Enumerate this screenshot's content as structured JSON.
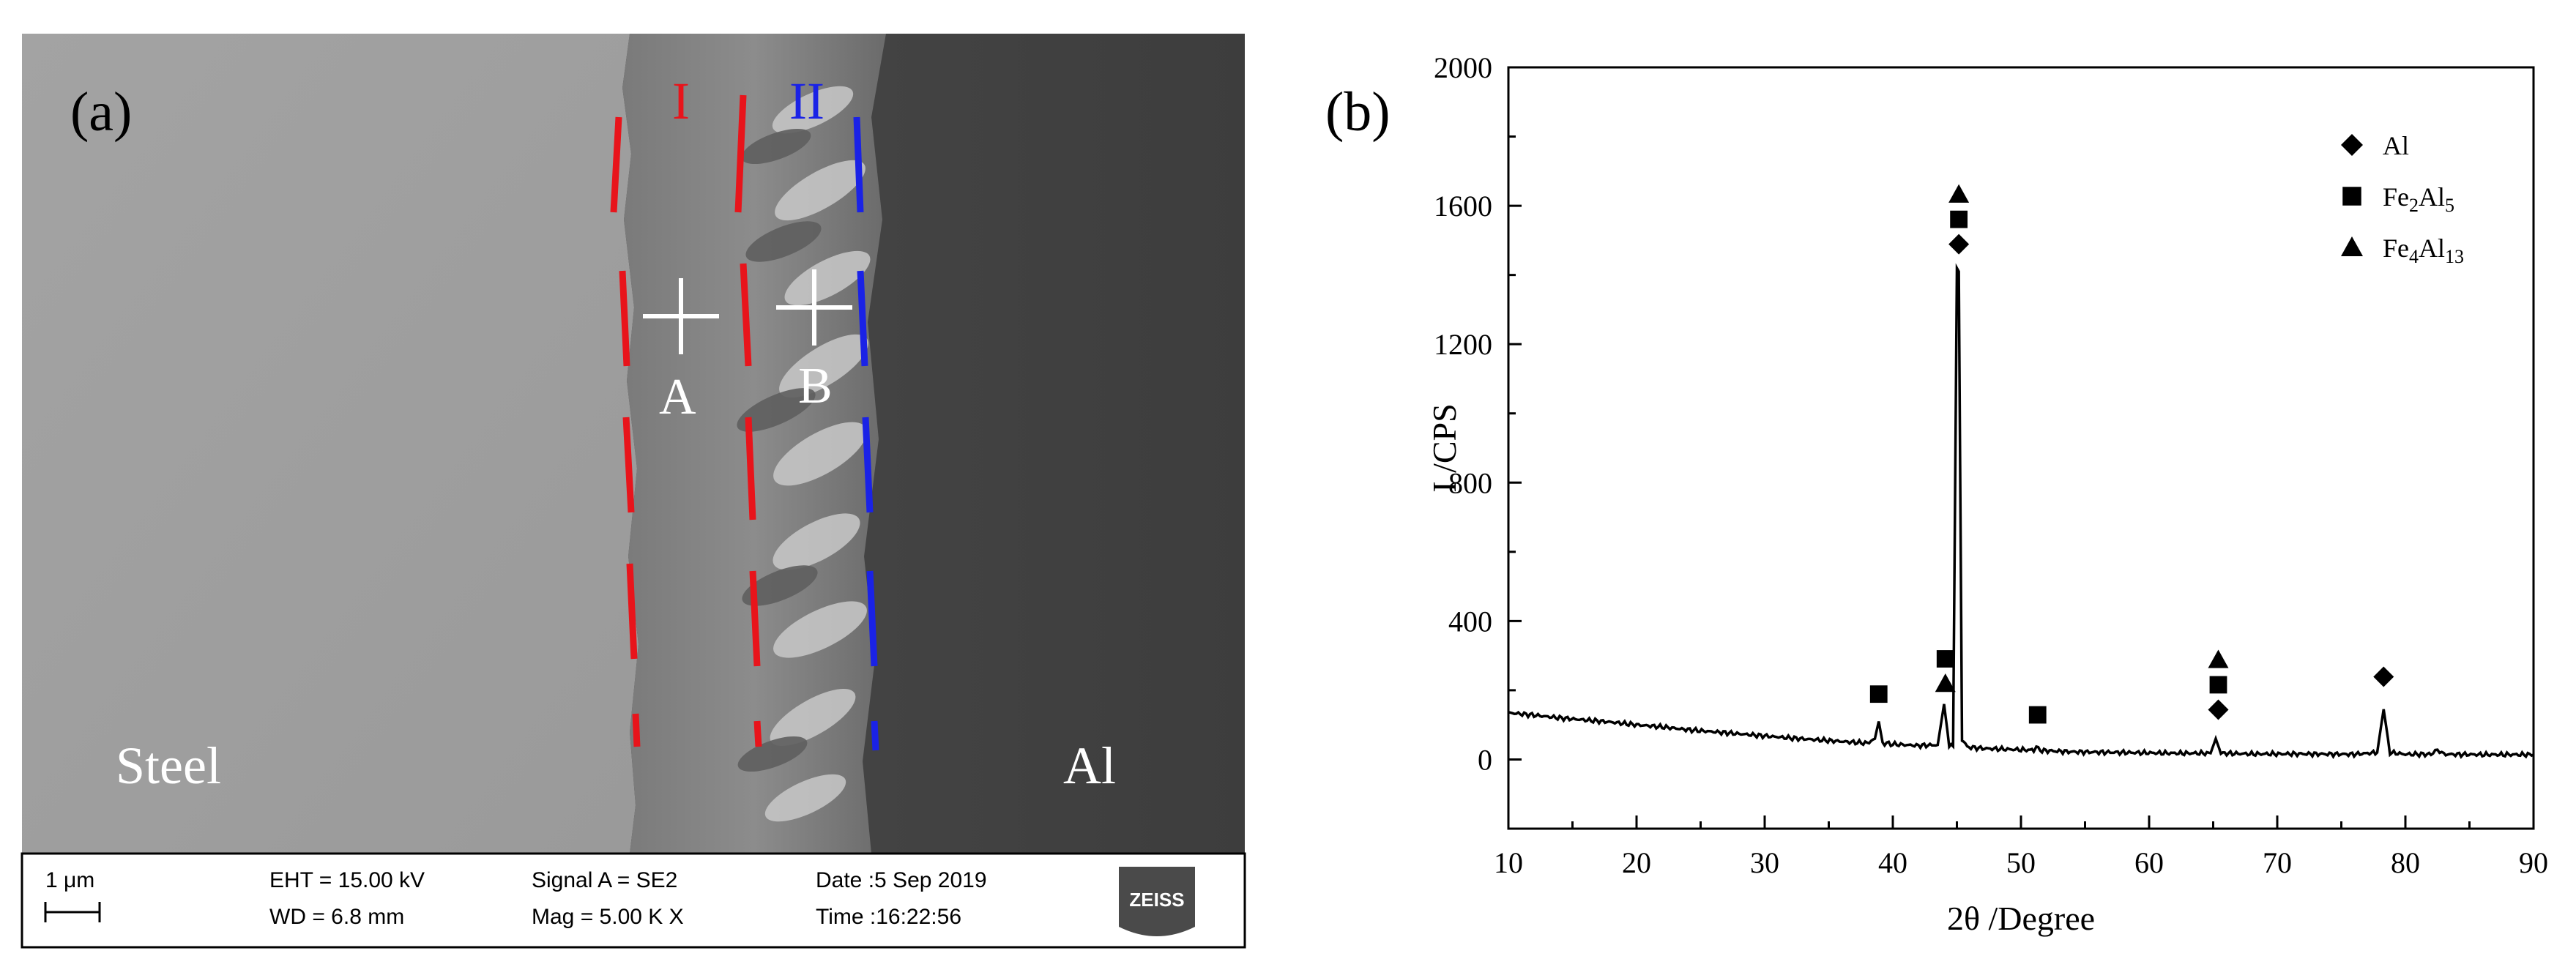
{
  "panel_a": {
    "label": "(a)",
    "region_labels": {
      "steel": "Steel",
      "al": "Al"
    },
    "zone_labels": {
      "zone1": "I",
      "zone2": "II"
    },
    "points": {
      "a": "A",
      "b": "B"
    },
    "colors": {
      "zone1_line": "#e8141b",
      "zone2_line": "#1a22e6",
      "marker": "#ffffff"
    },
    "info_bar": {
      "scale_bar": "1 μm",
      "eht": "EHT = 15.00 kV",
      "wd": "WD =  6.8 mm",
      "signal": "Signal A = SE2",
      "mag": "Mag =    5.00 K X",
      "date": "Date :5 Sep 2019",
      "time": "Time :16:22:56",
      "logo": "ZEISS"
    }
  },
  "panel_b": {
    "label": "(b)",
    "chart_data": {
      "type": "line",
      "title": "",
      "xlabel": "2θ /Degree",
      "ylabel": "I /CPS",
      "xlim": [
        10,
        90
      ],
      "ylim": [
        -200,
        2000
      ],
      "xticks": [
        10,
        20,
        30,
        40,
        50,
        60,
        70,
        80,
        90
      ],
      "yticks": [
        0,
        400,
        800,
        1200,
        1600,
        2000
      ],
      "series": [
        {
          "x": [
            10,
            12,
            14,
            16,
            18,
            20,
            22,
            24,
            26,
            28,
            30,
            32,
            34,
            36,
            38,
            38.6,
            38.9,
            39.2,
            40,
            42,
            43.5,
            44.0,
            44.4,
            44.7,
            45.0,
            45.15,
            45.4,
            45.8,
            47,
            50,
            51.0,
            51.2,
            51.5,
            54,
            58,
            62,
            64.8,
            65.2,
            65.6,
            68,
            72,
            76,
            77.8,
            78.3,
            78.8,
            80,
            82,
            82.5,
            83,
            86,
            90
          ],
          "y": [
            135,
            128,
            120,
            114,
            108,
            100,
            94,
            86,
            80,
            74,
            68,
            62,
            57,
            52,
            47,
            60,
            110,
            48,
            44,
            40,
            42,
            160,
            40,
            38,
            1420,
            1410,
            60,
            36,
            32,
            28,
            27,
            38,
            26,
            22,
            20,
            18,
            18,
            60,
            18,
            16,
            16,
            15,
            20,
            145,
            20,
            15,
            15,
            28,
            15,
            14,
            14
          ]
        }
      ],
      "legend": {
        "position": "top-right",
        "entries": [
          {
            "symbol": "diamond",
            "text": "Al"
          },
          {
            "symbol": "square",
            "text": "Fe2Al5"
          },
          {
            "symbol": "triangle",
            "text": "Fe4Al13"
          }
        ]
      },
      "peak_markers": [
        {
          "x": 38.9,
          "y": 155,
          "symbols": [
            "square"
          ]
        },
        {
          "x": 44.1,
          "y": 185,
          "symbols": [
            "triangle",
            "square"
          ]
        },
        {
          "x": 45.15,
          "y": 1455,
          "symbols": [
            "diamond",
            "square",
            "triangle"
          ]
        },
        {
          "x": 51.3,
          "y": 95,
          "symbols": [
            "square"
          ]
        },
        {
          "x": 65.4,
          "y": 110,
          "symbols": [
            "diamond",
            "square",
            "triangle"
          ]
        },
        {
          "x": 78.3,
          "y": 205,
          "symbols": [
            "diamond"
          ]
        }
      ]
    }
  }
}
